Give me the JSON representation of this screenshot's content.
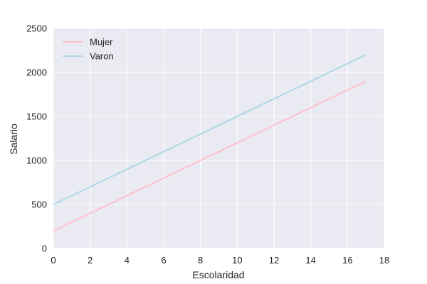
{
  "chart_data": {
    "type": "line",
    "title": "",
    "xlabel": "Escolaridad",
    "ylabel": "Salario",
    "xlim": [
      0,
      18
    ],
    "ylim": [
      0,
      2500
    ],
    "xticks": [
      0,
      2,
      4,
      6,
      8,
      10,
      12,
      14,
      16,
      18
    ],
    "yticks": [
      0,
      500,
      1000,
      1500,
      2000,
      2500
    ],
    "xtick_labels": [
      "0",
      "2",
      "4",
      "6",
      "8",
      "10",
      "12",
      "14",
      "16",
      "18"
    ],
    "ytick_labels": [
      "0",
      "500",
      "1000",
      "1500",
      "2000",
      "2500"
    ],
    "grid": true,
    "legend_position": "top-left",
    "background_color": "#EAEAF2",
    "series": [
      {
        "name": "Mujer",
        "color": "#FFC0CB",
        "x": [
          0,
          17
        ],
        "y": [
          200,
          1900
        ]
      },
      {
        "name": "Varon",
        "color": "#ADD8E6",
        "x": [
          0,
          17
        ],
        "y": [
          500,
          2200
        ]
      }
    ]
  }
}
